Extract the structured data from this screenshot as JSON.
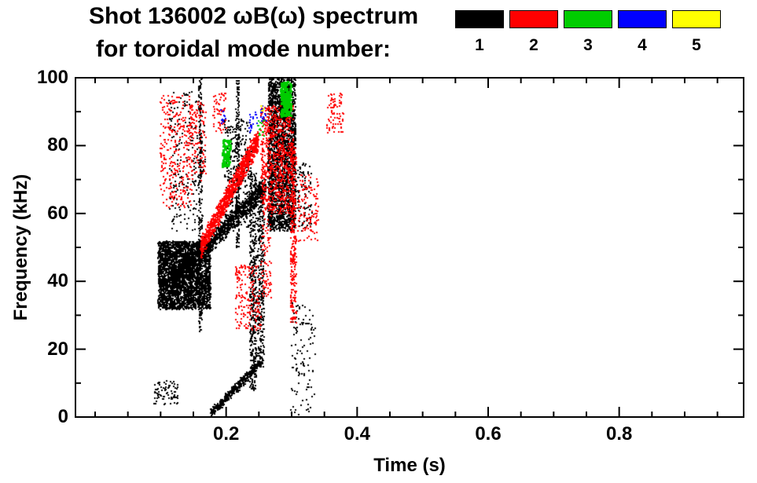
{
  "chart_data": {
    "type": "scatter",
    "title": "Shot 136002 ωB(ω) spectrum",
    "subtitle": "for toroidal mode number:",
    "xlabel": "Time (s)",
    "ylabel": "Frequency (kHz)",
    "axes": {
      "xlim": [
        -0.03,
        0.99
      ],
      "ylim": [
        0,
        100
      ],
      "x_major_ticks": [
        0.2,
        0.4,
        0.6,
        0.8
      ],
      "x_tick_labels": [
        "0.2",
        "0.4",
        "0.6",
        "0.8"
      ],
      "x_minor_step": 0.05,
      "y_major_ticks": [
        0,
        20,
        40,
        60,
        80,
        100
      ],
      "y_tick_labels": [
        "0",
        "20",
        "40",
        "60",
        "80",
        "100"
      ],
      "y_minor_step": 10,
      "grid": false,
      "frame_color": "#000000"
    },
    "legend": {
      "position": "top-right",
      "items": [
        {
          "label": "1",
          "color": "#000000"
        },
        {
          "label": "2",
          "color": "#ff0000"
        },
        {
          "label": "3",
          "color": "#00cc00"
        },
        {
          "label": "4",
          "color": "#0000ff"
        },
        {
          "label": "5",
          "color": "#ffff00"
        }
      ]
    },
    "series": [
      {
        "name": "n=1",
        "color": "#000000",
        "clusters": [
          {
            "shape": "blob",
            "t": [
              0.095,
              0.175
            ],
            "f": [
              32,
              52
            ],
            "n": 3000,
            "px": 2,
            "seed": 1
          },
          {
            "shape": "band",
            "t": [
              0.115,
              0.26
            ],
            "f": [
              40,
              68
            ],
            "spread": 3.5,
            "n": 1200,
            "px": 2,
            "seed": 2
          },
          {
            "shape": "streak",
            "t": [
              0.157,
              0.162
            ],
            "f": [
              25,
              100
            ],
            "n": 260,
            "px": 2,
            "seed": 3
          },
          {
            "shape": "blob",
            "t": [
              0.263,
              0.305
            ],
            "f": [
              55,
              100
            ],
            "n": 2400,
            "px": 2,
            "seed": 4
          },
          {
            "shape": "streak",
            "t": [
              0.235,
              0.245
            ],
            "f": [
              8,
              72
            ],
            "n": 420,
            "px": 2,
            "seed": 5
          },
          {
            "shape": "streak",
            "t": [
              0.247,
              0.257
            ],
            "f": [
              15,
              70
            ],
            "n": 330,
            "px": 2,
            "seed": 6
          },
          {
            "shape": "band",
            "t": [
              0.175,
              0.255
            ],
            "f": [
              1,
              17
            ],
            "spread": 1.8,
            "n": 420,
            "px": 2,
            "seed": 7
          },
          {
            "shape": "blob",
            "t": [
              0.088,
              0.125
            ],
            "f": [
              4,
              11
            ],
            "n": 80,
            "px": 2,
            "seed": 8
          },
          {
            "shape": "blob",
            "t": [
              0.112,
              0.168
            ],
            "f": [
              55,
              96
            ],
            "n": 220,
            "px": 2,
            "seed": 9
          },
          {
            "shape": "streak",
            "t": [
              0.214,
              0.219
            ],
            "f": [
              50,
              100
            ],
            "n": 200,
            "px": 2,
            "seed": 10
          },
          {
            "shape": "blob",
            "t": [
              0.196,
              0.238
            ],
            "f": [
              56,
              88
            ],
            "n": 320,
            "px": 2,
            "seed": 11
          },
          {
            "shape": "blob",
            "t": [
              0.298,
              0.335
            ],
            "f": [
              1,
              35
            ],
            "n": 110,
            "px": 2,
            "seed": 12
          },
          {
            "shape": "blob",
            "t": [
              0.305,
              0.33
            ],
            "f": [
              55,
              75
            ],
            "n": 90,
            "px": 2,
            "seed": 13
          }
        ]
      },
      {
        "name": "n=2",
        "color": "#ff0000",
        "clusters": [
          {
            "shape": "band",
            "t": [
              0.16,
              0.248
            ],
            "f": [
              50,
              82
            ],
            "spread": 4,
            "n": 1000,
            "px": 2,
            "seed": 21
          },
          {
            "shape": "blob",
            "t": [
              0.098,
              0.148
            ],
            "f": [
              62,
              95
            ],
            "n": 300,
            "px": 2,
            "seed": 22
          },
          {
            "shape": "blob",
            "t": [
              0.252,
              0.302
            ],
            "f": [
              60,
              92
            ],
            "n": 750,
            "px": 2,
            "seed": 23
          },
          {
            "shape": "streak",
            "t": [
              0.297,
              0.306
            ],
            "f": [
              28,
              80
            ],
            "n": 280,
            "px": 2,
            "seed": 24
          },
          {
            "shape": "blob",
            "t": [
              0.213,
              0.252
            ],
            "f": [
              26,
              45
            ],
            "n": 180,
            "px": 2,
            "seed": 25
          },
          {
            "shape": "blob",
            "t": [
              0.352,
              0.378
            ],
            "f": [
              84,
              96
            ],
            "n": 80,
            "px": 2,
            "seed": 26
          },
          {
            "shape": "blob",
            "t": [
              0.308,
              0.34
            ],
            "f": [
              52,
              72
            ],
            "n": 120,
            "px": 2,
            "seed": 27
          },
          {
            "shape": "blob",
            "t": [
              0.143,
              0.168
            ],
            "f": [
              70,
              93
            ],
            "n": 110,
            "px": 2,
            "seed": 28
          },
          {
            "shape": "blob",
            "t": [
              0.178,
              0.2
            ],
            "f": [
              84,
              96
            ],
            "n": 60,
            "px": 2,
            "seed": 29
          },
          {
            "shape": "blob",
            "t": [
              0.252,
              0.268
            ],
            "f": [
              35,
              60
            ],
            "n": 80,
            "px": 2,
            "seed": 30
          }
        ]
      },
      {
        "name": "n=3",
        "color": "#00cc00",
        "clusters": [
          {
            "shape": "blob",
            "t": [
              0.282,
              0.298
            ],
            "f": [
              89,
              99
            ],
            "n": 200,
            "px": 3,
            "seed": 31
          },
          {
            "shape": "blob",
            "t": [
              0.192,
              0.205
            ],
            "f": [
              74,
              82
            ],
            "n": 80,
            "px": 3,
            "seed": 32
          },
          {
            "shape": "blob",
            "t": [
              0.247,
              0.258
            ],
            "f": [
              83,
              88
            ],
            "n": 18,
            "px": 2,
            "seed": 33
          }
        ]
      },
      {
        "name": "n=4",
        "color": "#0000ff",
        "clusters": [
          {
            "shape": "blob",
            "t": [
              0.234,
              0.247
            ],
            "f": [
              84,
              90
            ],
            "n": 22,
            "px": 2,
            "seed": 41
          },
          {
            "shape": "blob",
            "t": [
              0.251,
              0.26
            ],
            "f": [
              87,
              92
            ],
            "n": 14,
            "px": 2,
            "seed": 42
          },
          {
            "shape": "blob",
            "t": [
              0.19,
              0.199
            ],
            "f": [
              86,
              91
            ],
            "n": 10,
            "px": 2,
            "seed": 43
          }
        ]
      },
      {
        "name": "n=5",
        "color": "#ffff00",
        "clusters": [
          {
            "shape": "blob",
            "t": [
              0.252,
              0.258
            ],
            "f": [
              89,
              92
            ],
            "n": 6,
            "px": 2,
            "seed": 51
          }
        ]
      }
    ]
  }
}
